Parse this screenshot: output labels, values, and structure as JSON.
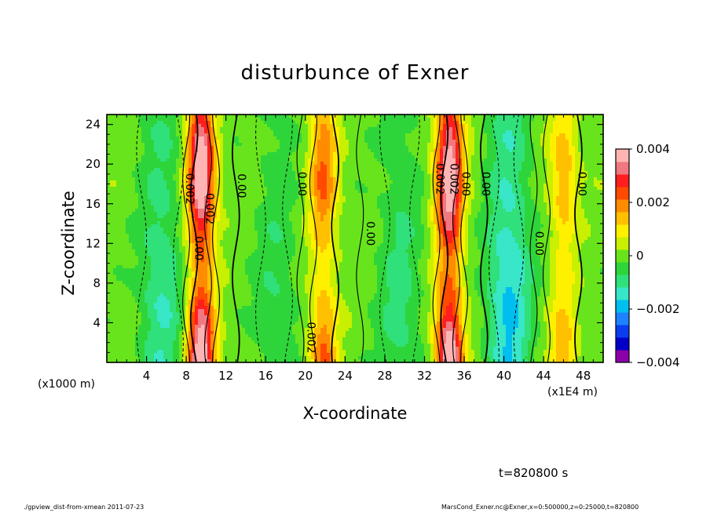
{
  "chart_data": {
    "type": "heatmap",
    "title": "disturbunce of Exner",
    "xlabel": "X-coordinate",
    "ylabel": "Z-coordinate",
    "x_unit_note": "(x1000 m)",
    "x_scale_note": "(x1E4 m)",
    "xlim": [
      0,
      50
    ],
    "ylim": [
      0,
      25
    ],
    "x_ticks": [
      "4",
      "8",
      "12",
      "16",
      "20",
      "24",
      "28",
      "32",
      "36",
      "40",
      "44",
      "48"
    ],
    "y_ticks": [
      "4",
      "8",
      "12",
      "16",
      "20",
      "24"
    ],
    "colorbar": {
      "range": [
        -0.004,
        0.004
      ],
      "tick_labels": [
        "0.004",
        "0.002",
        "0",
        "−0.002",
        "−0.004"
      ],
      "colors": [
        "#8b00a8",
        "#0000c8",
        "#0a3cf0",
        "#1e82ff",
        "#00bff0",
        "#38e6c8",
        "#30e07a",
        "#2ed53a",
        "#68e41c",
        "#c8f000",
        "#fff000",
        "#ffc000",
        "#ff8c00",
        "#ff4a00",
        "#ff1e1e",
        "#f07880",
        "#ffb4b4"
      ]
    },
    "contour_labels": [
      "0.002",
      "0.002",
      "0.00",
      "0.00",
      "0.00",
      "0.00",
      "0.002",
      "0.002",
      "0.00",
      "0.00",
      "0.00",
      "0.002",
      "0.00"
    ],
    "features": [
      {
        "x": 9.5,
        "amp": 0.0042,
        "kind": "max"
      },
      {
        "x": 21.8,
        "amp": 0.0022,
        "kind": "max"
      },
      {
        "x": 34.5,
        "amp": 0.0042,
        "kind": "max"
      },
      {
        "x": 46.0,
        "amp": 0.0016,
        "kind": "max"
      },
      {
        "x": 5.5,
        "amp": -0.0012,
        "kind": "min"
      },
      {
        "x": 17.0,
        "amp": -0.0007,
        "kind": "min"
      },
      {
        "x": 29.5,
        "amp": -0.0009,
        "kind": "min"
      },
      {
        "x": 40.5,
        "amp": -0.0018,
        "kind": "min"
      }
    ]
  },
  "annotations": {
    "time": "t=820800 s",
    "footer_left": "./gpview_dist-from-xmean  2011-07-23",
    "footer_right": "MarsCond_Exner.nc@Exner,x=0:500000,z=0:25000,t=820800"
  }
}
